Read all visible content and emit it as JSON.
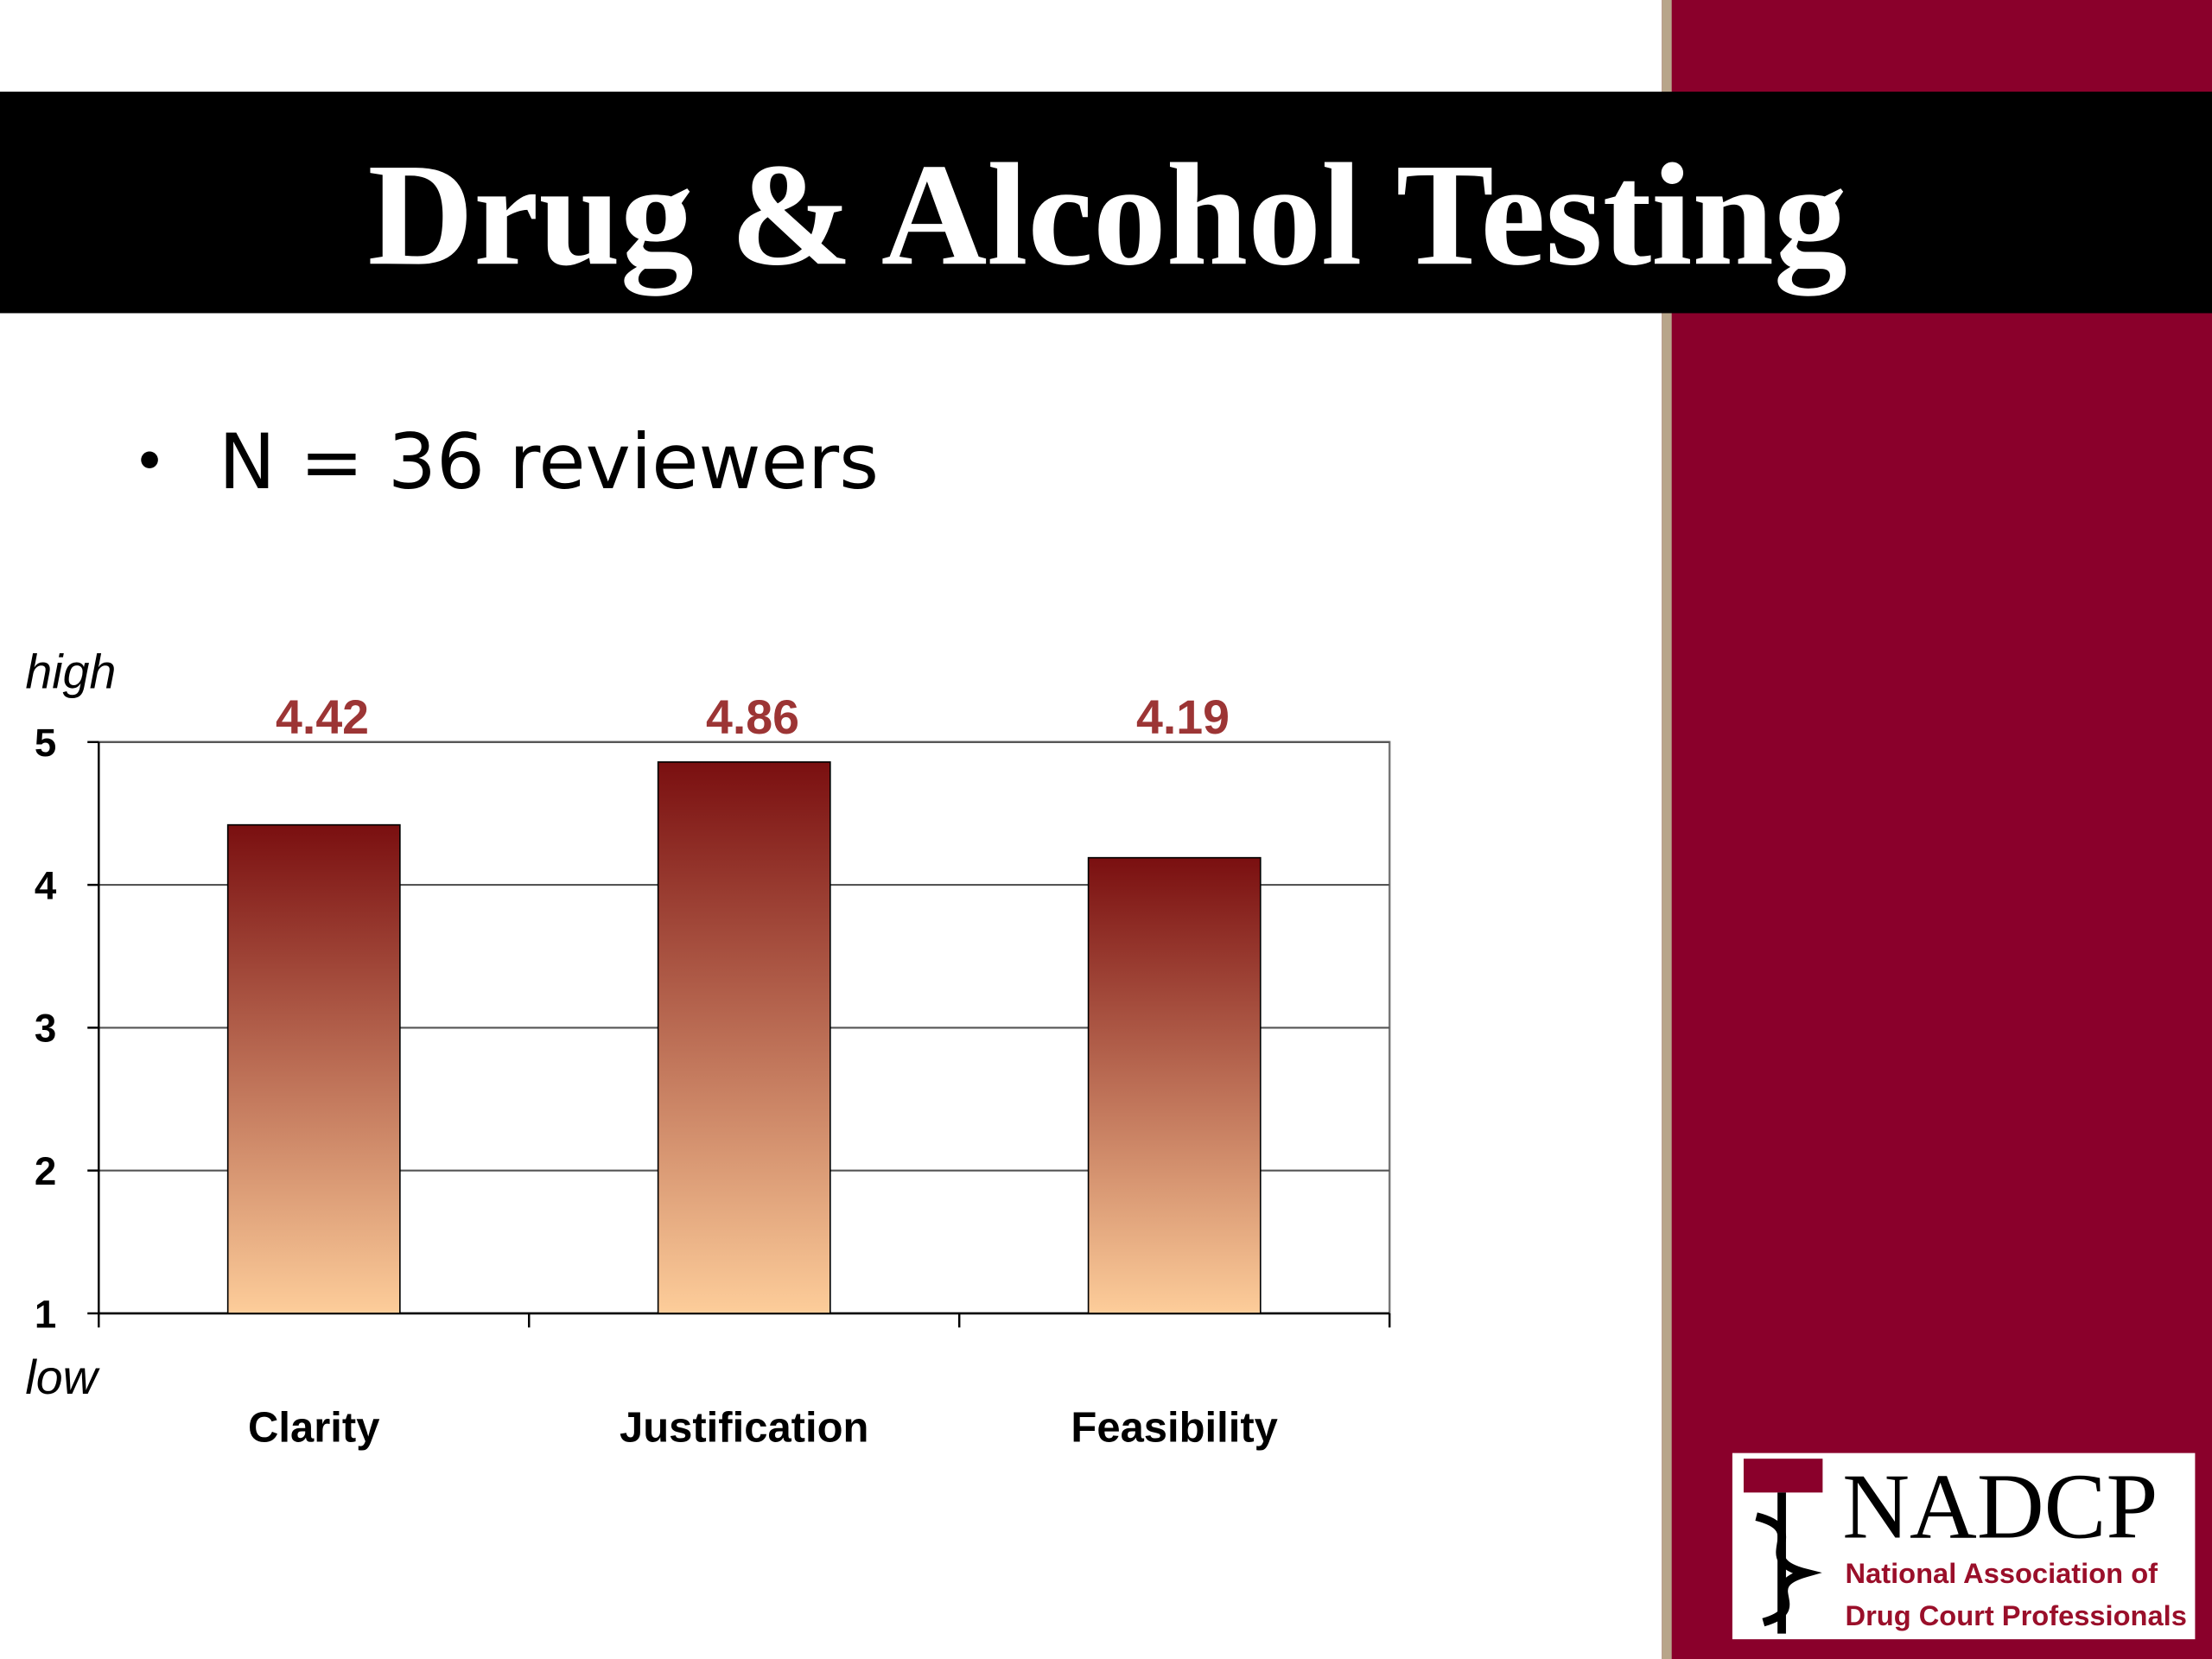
{
  "title": "Drug & Alcohol Testing",
  "bullet": "N = 36 reviewers",
  "logo": {
    "name": "NADCP",
    "line1": "National Association of",
    "line2": "Drug Court Professionals"
  },
  "chart_data": {
    "type": "bar",
    "y_high_label": "high",
    "y_low_label": "low",
    "categories": [
      "Clarity",
      "Justification",
      "Feasibility"
    ],
    "values": [
      4.42,
      4.86,
      4.19
    ],
    "gradient": [
      "#7a0f10",
      "#fdcd9a"
    ],
    "value_label_color": "#9c3535",
    "ylim": [
      1,
      5
    ],
    "yticks": [
      1,
      2,
      3,
      4,
      5
    ],
    "grid": true
  }
}
